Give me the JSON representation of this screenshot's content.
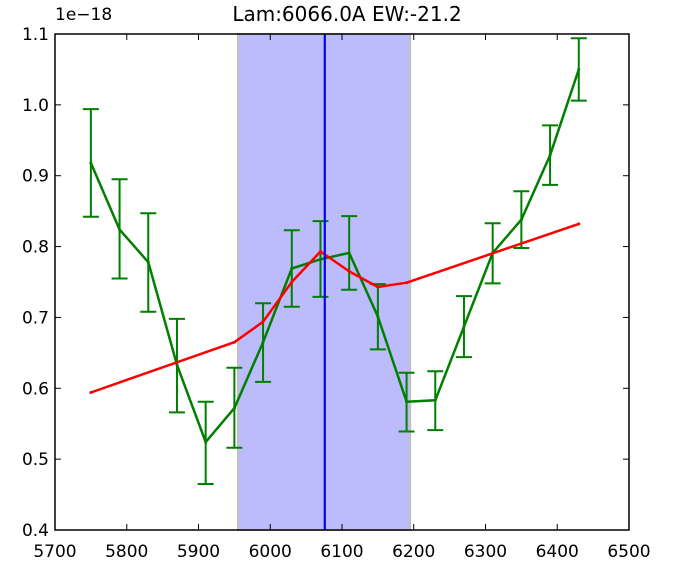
{
  "chart_data": {
    "type": "line",
    "title": "Lam:6066.0A EW:-21.2",
    "xlabel": "",
    "ylabel": "",
    "y_offset_label": "1e−18",
    "xlim": [
      5700,
      6500
    ],
    "ylim": [
      0.4,
      1.1
    ],
    "x_ticks": [
      5700,
      5800,
      5900,
      6000,
      6100,
      6200,
      6300,
      6400,
      6500
    ],
    "x_tick_labels": [
      "5700",
      "5800",
      "5900",
      "6000",
      "6100",
      "6200",
      "6300",
      "6400",
      "6500"
    ],
    "y_ticks": [
      0.4,
      0.5,
      0.6,
      0.7,
      0.8,
      0.9,
      1.0,
      1.1
    ],
    "y_tick_labels": [
      "0.4",
      "0.5",
      "0.6",
      "0.7",
      "0.8",
      "0.9",
      "1.0",
      "1.1"
    ],
    "grid": false,
    "highlight_band": {
      "x_start": 5955,
      "x_end": 6195,
      "color": "#bcbcfc",
      "edge_color": "#c0c0c0"
    },
    "center_line": {
      "x": 6076,
      "color": "#0000ff"
    },
    "series": [
      {
        "color": "#007f00",
        "errorbars": true,
        "x": [
          5750,
          5790,
          5830,
          5870,
          5910,
          5950,
          5990,
          6030,
          6070,
          6110,
          6150,
          6190,
          6230,
          6270,
          6310,
          6350,
          6390,
          6430
        ],
        "y": [
          0.918,
          0.824,
          0.778,
          0.633,
          0.524,
          0.572,
          0.665,
          0.769,
          0.782,
          0.791,
          0.701,
          0.581,
          0.583,
          0.687,
          0.791,
          0.838,
          0.929,
          1.05
        ],
        "yerr_low": [
          0.842,
          0.755,
          0.708,
          0.566,
          0.465,
          0.516,
          0.609,
          0.715,
          0.729,
          0.739,
          0.655,
          0.539,
          0.541,
          0.644,
          0.748,
          0.798,
          0.887,
          1.006
        ],
        "yerr_high": [
          0.994,
          0.895,
          0.847,
          0.698,
          0.581,
          0.629,
          0.72,
          0.823,
          0.836,
          0.843,
          0.747,
          0.622,
          0.624,
          0.73,
          0.833,
          0.878,
          0.971,
          1.094
        ]
      },
      {
        "color": "#ff0000",
        "errorbars": false,
        "x": [
          5750,
          5950,
          5990,
          6030,
          6070,
          6110,
          6150,
          6190,
          6430
        ],
        "y": [
          0.594,
          0.665,
          0.694,
          0.75,
          0.793,
          0.765,
          0.743,
          0.749,
          0.832
        ]
      }
    ]
  }
}
